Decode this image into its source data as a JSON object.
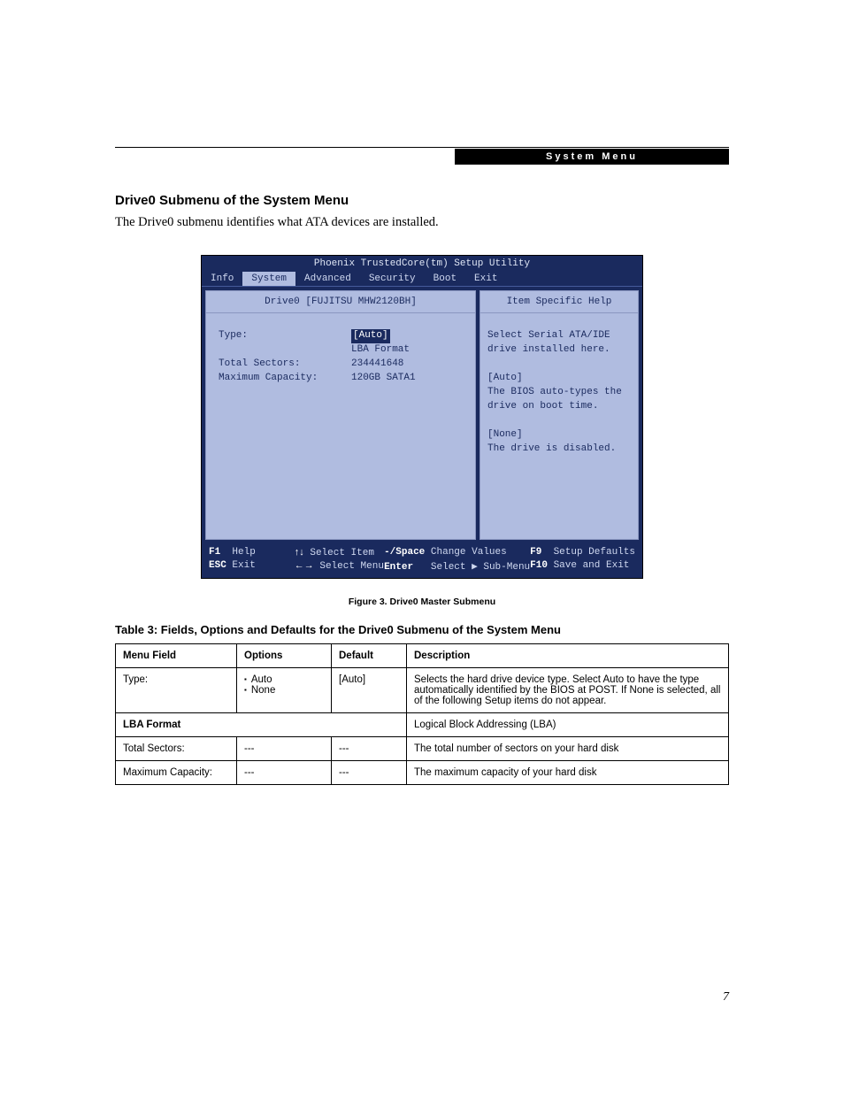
{
  "header": {
    "label": "System Menu"
  },
  "doc": {
    "heading": "Drive0 Submenu of the System Menu",
    "intro": "The Drive0 submenu identifies what ATA devices are installed.",
    "figure_caption": "Figure 3.  Drive0 Master Submenu",
    "table_caption": "Table 3: Fields, Options and Defaults for the Drive0 Submenu of the System Menu",
    "page_number": "7"
  },
  "bios": {
    "title": "Phoenix TrustedCore(tm) Setup Utility",
    "tabs": [
      "Info",
      "System",
      "Advanced",
      "Security",
      "Boot",
      "Exit"
    ],
    "active_tab_index": 1,
    "panel_title": "Drive0 [FUJITSU MHW2120BH]",
    "help_title": "Item Specific Help",
    "fields": {
      "type": {
        "label": "Type:",
        "value": "[Auto]"
      },
      "lba": {
        "label": "LBA Format"
      },
      "sectors": {
        "label": "Total Sectors:",
        "value": "234441648"
      },
      "capacity": {
        "label": "Maximum Capacity:",
        "value": "120GB SATA1"
      }
    },
    "help_lines": [
      "Select Serial ATA/IDE",
      "drive installed here.",
      "",
      "[Auto]",
      "The BIOS auto-types the",
      "drive on boot time.",
      "",
      "[None]",
      "The drive is disabled."
    ],
    "footer": {
      "r1c1": {
        "key": "F1",
        "text": "Help"
      },
      "r1c2": {
        "key": "↑↓",
        "text": "Select Item"
      },
      "r1c3": {
        "key": "-/Space",
        "text": "Change Values"
      },
      "r1c4": {
        "key": "F9",
        "text": "Setup Defaults"
      },
      "r2c1": {
        "key": "ESC",
        "text": "Exit"
      },
      "r2c2": {
        "key": "←→",
        "text": "Select Menu"
      },
      "r2c3": {
        "key": "Enter",
        "text": "Select ▶ Sub-Menu"
      },
      "r2c4": {
        "key": "F10",
        "text": "Save and Exit"
      }
    },
    "colors": {
      "bg": "#1a2a5e",
      "panel": "#b0bce0",
      "text_light": "#cfd8f0"
    }
  },
  "table": {
    "headers": [
      "Menu Field",
      "Options",
      "Default",
      "Description"
    ],
    "rows": [
      {
        "field": "Type:",
        "options": [
          "Auto",
          "None"
        ],
        "default": "[Auto]",
        "desc": "Selects the hard drive device type. Select Auto to have the type automatically identified by the BIOS at POST. If None is selected, all of the following Setup items do not appear."
      },
      {
        "field": "LBA Format",
        "options_text": "",
        "default": "",
        "desc": "Logical Block Addressing (LBA)",
        "subheader": true
      },
      {
        "field": "Total Sectors:",
        "options_text": "---",
        "default": "---",
        "desc": "The total number of sectors on your hard disk"
      },
      {
        "field": "Maximum Capacity:",
        "options_text": "---",
        "default": "---",
        "desc": "The maximum capacity of your hard disk"
      }
    ]
  }
}
